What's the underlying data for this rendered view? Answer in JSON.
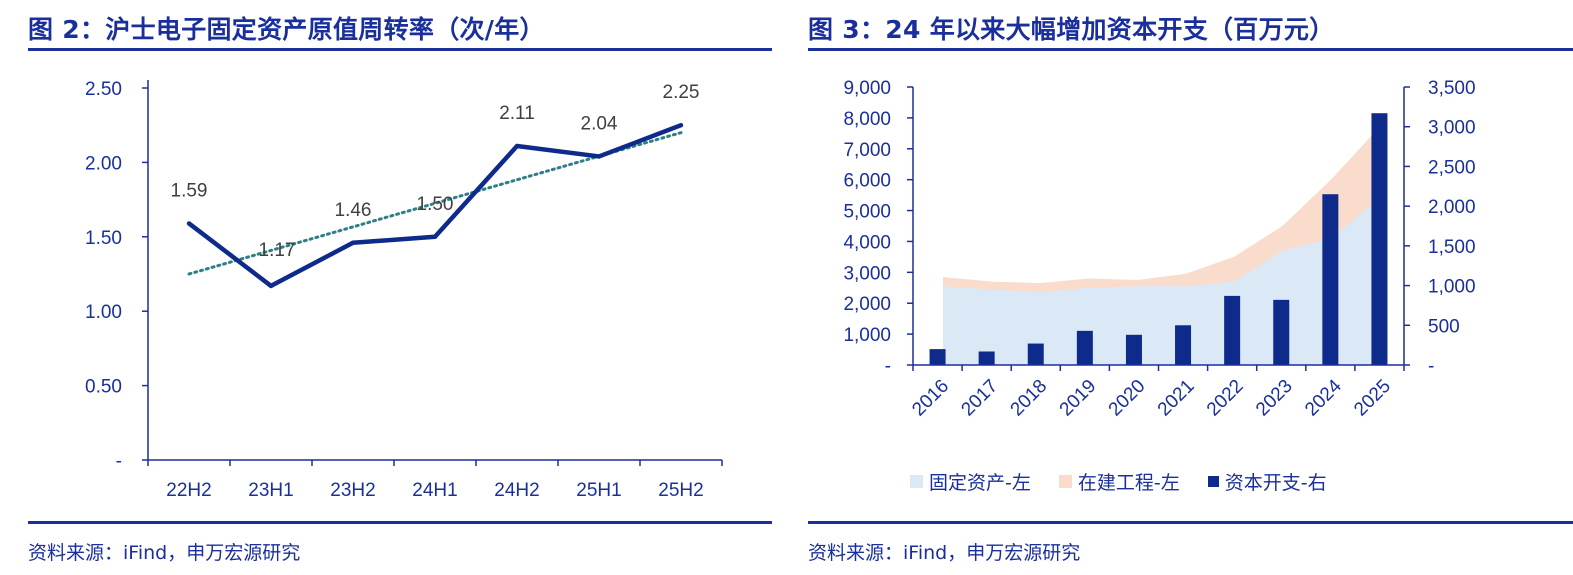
{
  "left": {
    "title": "图 2：沪士电子固定资产原值周转率（次/年）",
    "source": "资料来源：iFind，申万宏源研究"
  },
  "right": {
    "title": "图 3：24 年以来大幅增加资本开支（百万元）",
    "source": "资料来源：iFind，申万宏源研究"
  },
  "colors": {
    "navy": "#1a2f9c",
    "line": "#0e2a8a",
    "trend": "#2f7f86",
    "fixed_assets": "#dbe8f6",
    "construction": "#f9dccb",
    "bars": "#0e2a8a"
  },
  "chart_data": [
    {
      "type": "line",
      "categories": [
        "22H2",
        "23H1",
        "23H2",
        "24H1",
        "24H2",
        "25H1",
        "25H2"
      ],
      "series": [
        {
          "values": [
            1.59,
            1.17,
            1.46,
            1.5,
            2.11,
            2.04,
            2.25
          ],
          "data_labels": [
            "1.59",
            "1.17",
            "1.46",
            "1.50",
            "2.11",
            "2.04",
            "2.25"
          ]
        }
      ],
      "trendline": {
        "type": "linear",
        "start": 1.25,
        "end": 2.2
      },
      "ylim": [
        0,
        2.5
      ],
      "yticks": [
        "-",
        "0.50",
        "1.00",
        "1.50",
        "2.00",
        "2.50"
      ],
      "grid": false
    },
    {
      "type": "area+bar",
      "categories": [
        "2016",
        "2017",
        "2018",
        "2019",
        "2020",
        "2021",
        "2022",
        "2023",
        "2024",
        "2025"
      ],
      "series": [
        {
          "name": "固定资产-左",
          "type": "area",
          "axis": "left",
          "values": [
            2550,
            2450,
            2350,
            2500,
            2550,
            2550,
            2700,
            3700,
            4100,
            5400
          ]
        },
        {
          "name": "在建工程-左",
          "type": "area",
          "axis": "left",
          "values": [
            2850,
            2700,
            2650,
            2800,
            2750,
            2950,
            3500,
            4500,
            6000,
            7700
          ]
        },
        {
          "name": "资本开支-右",
          "type": "bar",
          "axis": "right",
          "values": [
            200,
            170,
            270,
            430,
            380,
            500,
            870,
            820,
            2150,
            3170
          ]
        }
      ],
      "ylim_left": [
        0,
        9000
      ],
      "ylim_right": [
        0,
        3500
      ],
      "yticks_left": [
        "-",
        "1,000",
        "2,000",
        "3,000",
        "4,000",
        "5,000",
        "6,000",
        "7,000",
        "8,000",
        "9,000"
      ],
      "yticks_right": [
        "-",
        "500",
        "1,000",
        "1,500",
        "2,000",
        "2,500",
        "3,000",
        "3,500"
      ],
      "legend_position": "bottom",
      "grid": false
    }
  ]
}
